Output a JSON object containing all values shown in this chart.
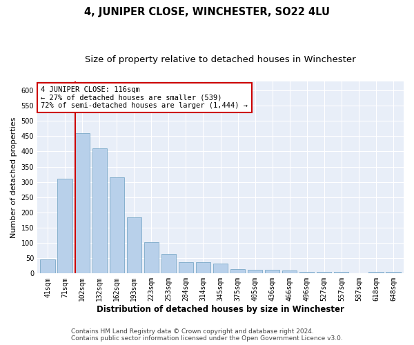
{
  "title": "4, JUNIPER CLOSE, WINCHESTER, SO22 4LU",
  "subtitle": "Size of property relative to detached houses in Winchester",
  "xlabel": "Distribution of detached houses by size in Winchester",
  "ylabel": "Number of detached properties",
  "bar_labels": [
    "41sqm",
    "71sqm",
    "102sqm",
    "132sqm",
    "162sqm",
    "193sqm",
    "223sqm",
    "253sqm",
    "284sqm",
    "314sqm",
    "345sqm",
    "375sqm",
    "405sqm",
    "436sqm",
    "466sqm",
    "496sqm",
    "527sqm",
    "557sqm",
    "587sqm",
    "618sqm",
    "648sqm"
  ],
  "bar_values": [
    47,
    310,
    460,
    410,
    315,
    185,
    103,
    65,
    38,
    38,
    33,
    14,
    12,
    12,
    10,
    6,
    5,
    5,
    0,
    5,
    5
  ],
  "bar_color": "#b8d0ea",
  "bar_edge_color": "#6a9ec0",
  "vline_x_index": 2,
  "vline_color": "#cc0000",
  "annotation_text": "4 JUNIPER CLOSE: 116sqm\n← 27% of detached houses are smaller (539)\n72% of semi-detached houses are larger (1,444) →",
  "annotation_box_color": "#cc0000",
  "annotation_facecolor": "white",
  "ylim": [
    0,
    630
  ],
  "yticks": [
    0,
    50,
    100,
    150,
    200,
    250,
    300,
    350,
    400,
    450,
    500,
    550,
    600
  ],
  "background_color": "#e8eef8",
  "grid_color": "white",
  "footer_line1": "Contains HM Land Registry data © Crown copyright and database right 2024.",
  "footer_line2": "Contains public sector information licensed under the Open Government Licence v3.0.",
  "title_fontsize": 10.5,
  "subtitle_fontsize": 9.5,
  "xlabel_fontsize": 8.5,
  "ylabel_fontsize": 8,
  "tick_fontsize": 7,
  "annotation_fontsize": 7.5,
  "footer_fontsize": 6.5,
  "fig_width": 6.0,
  "fig_height": 5.0,
  "dpi": 100
}
